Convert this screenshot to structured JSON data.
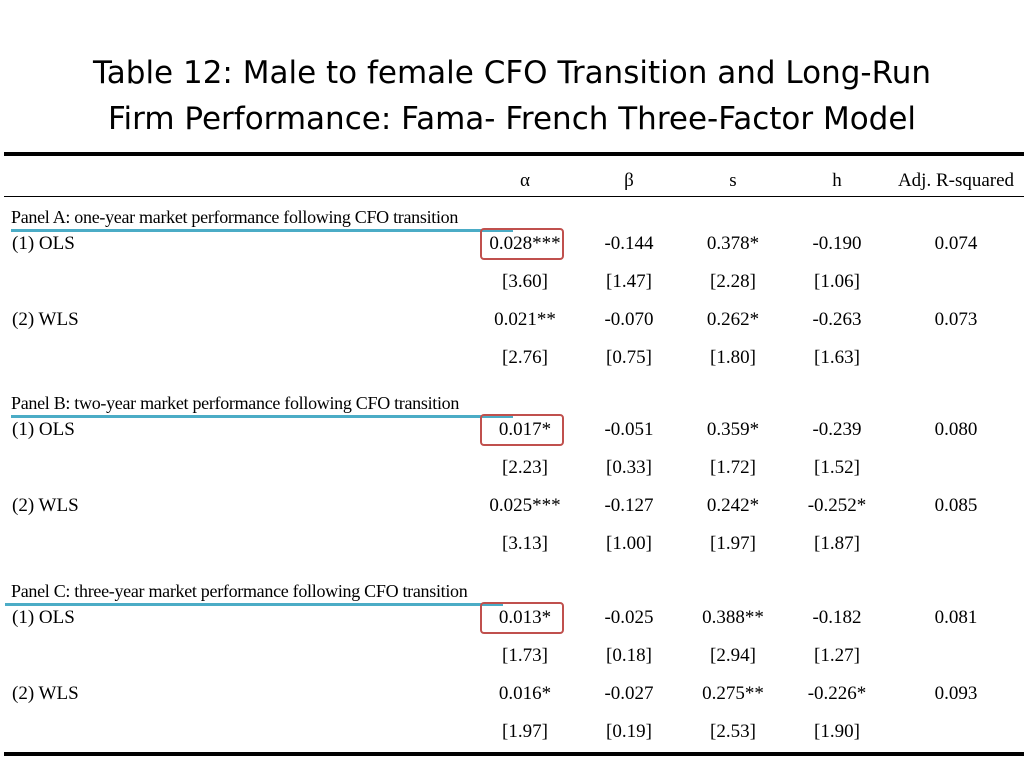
{
  "title": {
    "line1": "Table 12: Male to female CFO Transition and Long-Run",
    "line2": "Firm Performance: Fama- French Three-Factor Model"
  },
  "columns": [
    "α",
    "β",
    "s",
    "h",
    "Adj. R-squared"
  ],
  "panels": [
    {
      "title": "Panel A: one-year market performance following CFO transition",
      "rows": [
        {
          "label": "(1) OLS",
          "coef": [
            "0.028***",
            "-0.144",
            "0.378*",
            "-0.190",
            "0.074"
          ],
          "tstat": [
            "[3.60]",
            "[1.47]",
            "[2.28]",
            "[1.06]"
          ],
          "highlighted": true
        },
        {
          "label": "(2) WLS",
          "coef": [
            "0.021**",
            "-0.070",
            "0.262*",
            "-0.263",
            "0.073"
          ],
          "tstat": [
            "[2.76]",
            "[0.75]",
            "[1.80]",
            "[1.63]"
          ],
          "highlighted": false
        }
      ]
    },
    {
      "title": "Panel B: two-year market performance following CFO transition",
      "rows": [
        {
          "label": "(1) OLS",
          "coef": [
            "0.017*",
            "-0.051",
            "0.359*",
            "-0.239",
            "0.080"
          ],
          "tstat": [
            "[2.23]",
            "[0.33]",
            "[1.72]",
            "[1.52]"
          ],
          "highlighted": true
        },
        {
          "label": "(2) WLS",
          "coef": [
            "0.025***",
            "-0.127",
            "0.242*",
            "-0.252*",
            "0.085"
          ],
          "tstat": [
            "[3.13]",
            "[1.00]",
            "[1.97]",
            "[1.87]"
          ],
          "highlighted": false
        }
      ]
    },
    {
      "title": "Panel C: three-year market performance following CFO transition",
      "rows": [
        {
          "label": "(1) OLS",
          "coef": [
            "0.013*",
            "-0.025",
            "0.388**",
            "-0.182",
            "0.081"
          ],
          "tstat": [
            "[1.73]",
            "[0.18]",
            "[2.94]",
            "[1.27]"
          ],
          "highlighted": true
        },
        {
          "label": "(2) WLS",
          "coef": [
            "0.016*",
            "-0.027",
            "0.275**",
            "-0.226*",
            "0.093"
          ],
          "tstat": [
            "[1.97]",
            "[0.19]",
            "[2.53]",
            "[1.90]"
          ],
          "highlighted": false
        }
      ]
    }
  ],
  "colors": {
    "highlight_box": "#c0504d",
    "panel_underline": "#4bacc6"
  }
}
